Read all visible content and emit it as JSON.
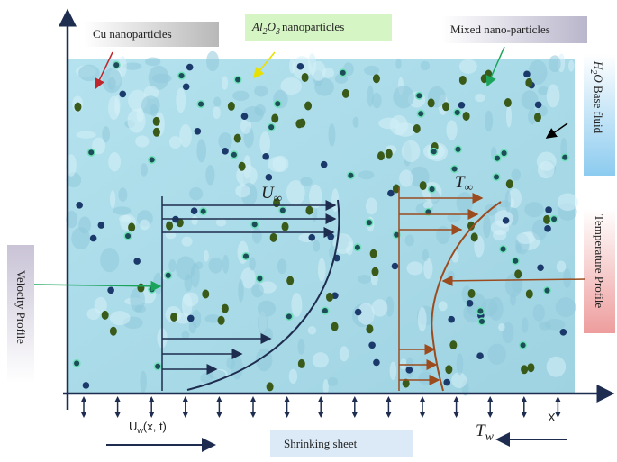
{
  "labels": {
    "cu": "Cu nanoparticles",
    "al2o3": {
      "a": "Al",
      "s1": "2",
      "b": "O",
      "s2": "3",
      "rest": "nanoparticles"
    },
    "mixed": "Mixed nano-particles",
    "h2o": {
      "a": "H",
      "s": "2",
      "b": "O",
      "rest": " Base fluid"
    },
    "temperature": "Temperature  Profile",
    "velocity": "Velocity Profile",
    "shrinking": "Shrinking sheet",
    "x_axis": "X"
  },
  "symbols": {
    "u_inf": {
      "main": "U",
      "sub": "∞"
    },
    "t_inf": {
      "main": "T",
      "sub": "∞"
    },
    "t_w": {
      "main": "T",
      "sub": "w"
    },
    "u_w": {
      "main": "U",
      "sub": "w",
      "rest": "(x, t)"
    }
  }
}
